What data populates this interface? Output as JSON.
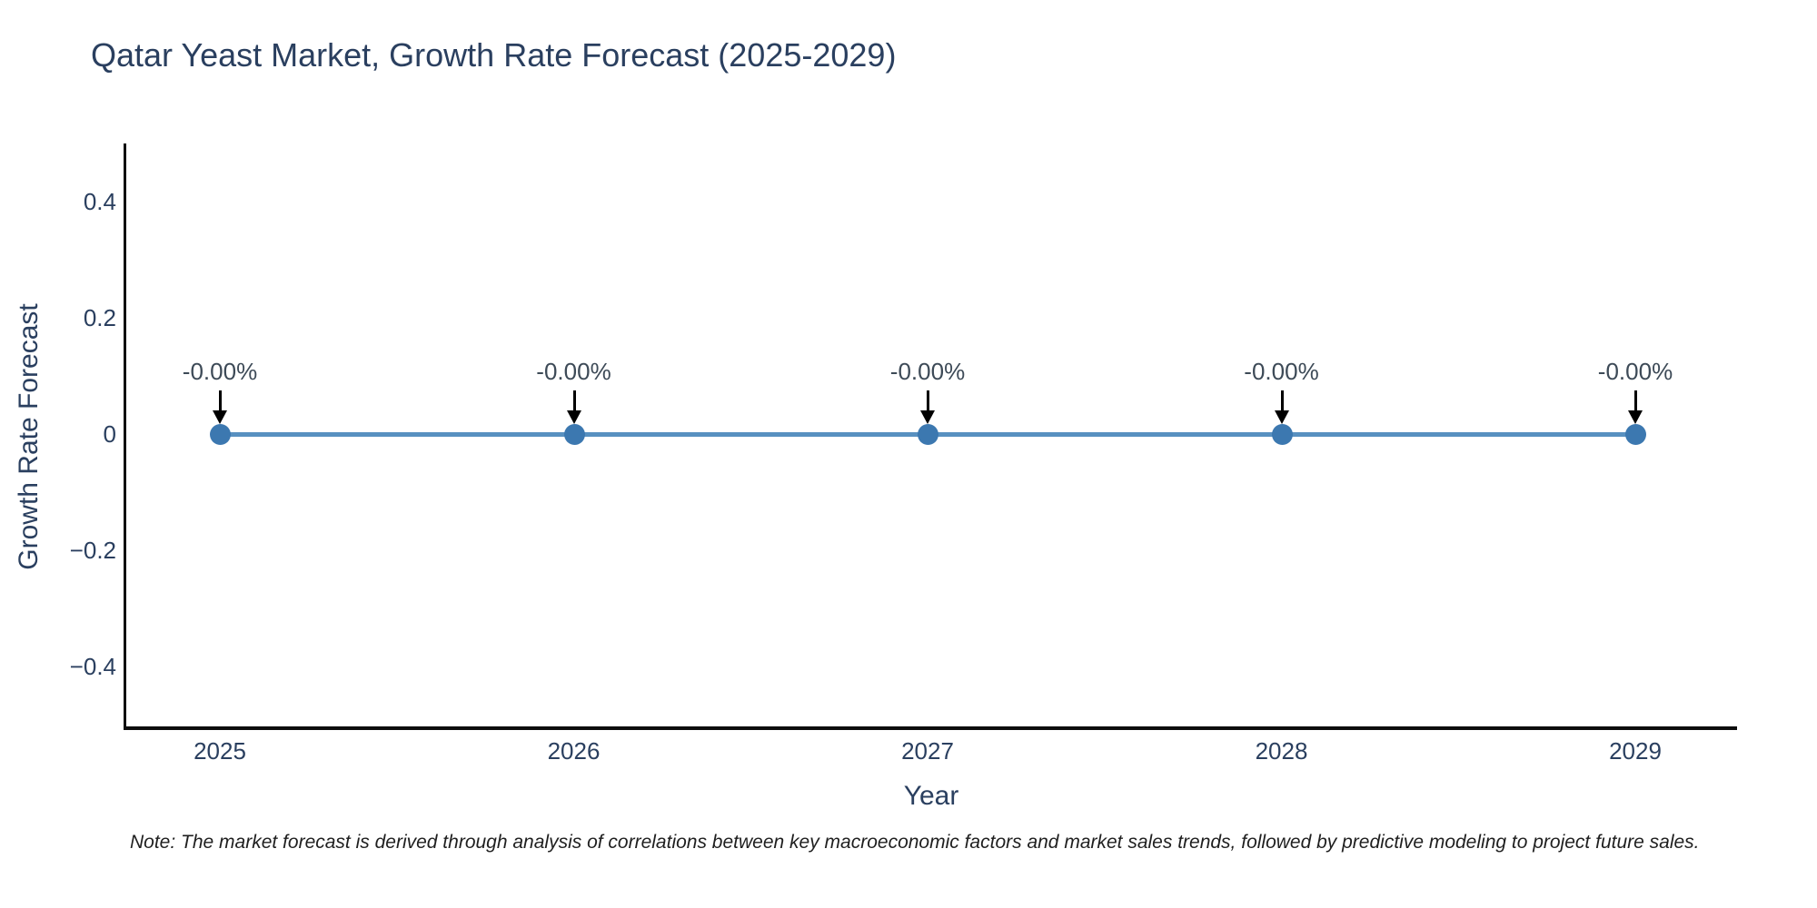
{
  "title": "Qatar Yeast Market, Growth Rate Forecast (2025-2029)",
  "note": "Note: The market forecast is derived through analysis of correlations between key macroeconomic factors and market sales trends, followed by predictive modeling to project future sales.",
  "chart_data": {
    "type": "line",
    "title": "Qatar Yeast Market, Growth Rate Forecast (2025-2029)",
    "xlabel": "Year",
    "ylabel": "Growth Rate Forecast",
    "x": [
      2025,
      2026,
      2027,
      2028,
      2029
    ],
    "series": [
      {
        "name": "Growth Rate Forecast",
        "values": [
          0,
          0,
          0,
          0,
          0
        ],
        "point_labels": [
          "-0.00%",
          "-0.00%",
          "-0.00%",
          "-0.00%",
          "-0.00%"
        ]
      }
    ],
    "xtick_labels": [
      "2025",
      "2026",
      "2027",
      "2028",
      "2029"
    ],
    "yticks": [
      0.4,
      0.2,
      0,
      -0.2,
      -0.4
    ],
    "ytick_labels": [
      "0.4",
      "0.2",
      "0",
      "−0.2",
      "−0.4"
    ],
    "ylim": [
      -0.5,
      0.5
    ],
    "grid": false,
    "legend": "none",
    "annotation_arrows": "black, pointing down onto each data point",
    "colors": {
      "line": "#5890c0",
      "marker": "#3c78b0",
      "axis": "#0d0d0d",
      "text": "#2a3f5f",
      "annotation_text": "#3d4a57",
      "annotation_arrow": "#000000",
      "background": "#ffffff"
    }
  }
}
